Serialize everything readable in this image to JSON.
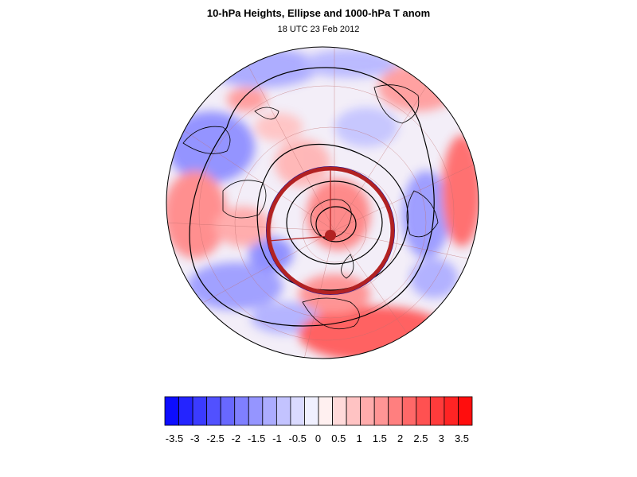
{
  "title": "10-hPa Heights, Ellipse and 1000-hPa T anom",
  "subtitle": "18 UTC 23 Feb 2012",
  "colorbar": {
    "colors": [
      "#0d0dff",
      "#2424ff",
      "#3b3bff",
      "#5151ff",
      "#6868ff",
      "#7f7fff",
      "#9595ff",
      "#acacff",
      "#c3c3ff",
      "#dadaff",
      "#f0f0ff",
      "#fff0f0",
      "#ffdada",
      "#ffc3c3",
      "#ffacac",
      "#ff9595",
      "#ff7f7f",
      "#ff6868",
      "#ff5151",
      "#ff3b3b",
      "#ff2424",
      "#ff0d0d"
    ],
    "labels": [
      "-3.5",
      "-3",
      "-2.5",
      "-2",
      "-1.5",
      "-1",
      "-0.5",
      "0",
      "0.5",
      "1",
      "1.5",
      "2",
      "2.5",
      "3",
      "3.5"
    ]
  },
  "map": {
    "ellipse_color": "#b22222",
    "ellipse_outline_color": "#1010a0",
    "contour_color": "#000000"
  }
}
